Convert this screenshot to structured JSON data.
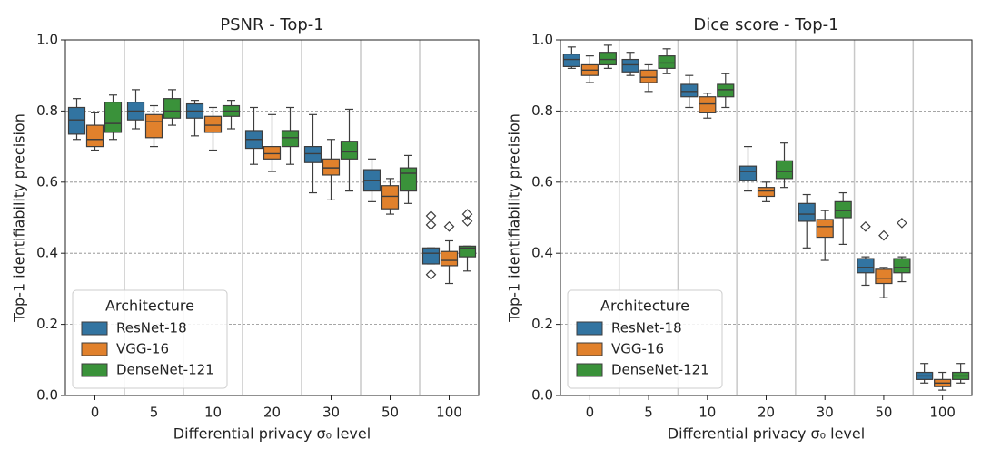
{
  "chart_data": [
    {
      "type": "box",
      "title": "PSNR - Top-1",
      "xlabel": "Differential privacy σ₀ level",
      "ylabel": "Top-1 identifiability precision",
      "categories": [
        "0",
        "5",
        "10",
        "20",
        "30",
        "50",
        "100"
      ],
      "ylim": [
        0,
        1
      ],
      "yticks": [
        {
          "value": 0,
          "label": "0.0"
        },
        {
          "value": 0.2,
          "label": "0.2"
        },
        {
          "value": 0.4,
          "label": "0.4"
        },
        {
          "value": 0.6,
          "label": "0.6"
        },
        {
          "value": 0.8,
          "label": "0.8"
        },
        {
          "value": 1,
          "label": "1.0"
        }
      ],
      "grid": true,
      "legend": {
        "title": "Architecture",
        "loc": "lower left"
      },
      "series": [
        {
          "name": "ResNet-18",
          "color": "#3274a1",
          "whislo": [
            0.72,
            0.75,
            0.73,
            0.65,
            0.57,
            0.545,
            0.37
          ],
          "q1": [
            0.735,
            0.775,
            0.78,
            0.695,
            0.655,
            0.575,
            0.37
          ],
          "median": [
            0.775,
            0.8,
            0.8,
            0.72,
            0.68,
            0.605,
            0.4
          ],
          "q3": [
            0.81,
            0.825,
            0.82,
            0.745,
            0.7,
            0.635,
            0.415
          ],
          "whishi": [
            0.835,
            0.86,
            0.83,
            0.81,
            0.79,
            0.665,
            0.415
          ],
          "fliers": [
            [],
            [],
            [],
            [],
            [],
            [],
            [
              0.34,
              0.48,
              0.505
            ]
          ]
        },
        {
          "name": "VGG-16",
          "color": "#e1812c",
          "whislo": [
            0.69,
            0.7,
            0.69,
            0.63,
            0.55,
            0.51,
            0.315
          ],
          "q1": [
            0.7,
            0.725,
            0.74,
            0.665,
            0.62,
            0.525,
            0.365
          ],
          "median": [
            0.72,
            0.77,
            0.76,
            0.68,
            0.64,
            0.56,
            0.38
          ],
          "q3": [
            0.76,
            0.79,
            0.785,
            0.7,
            0.665,
            0.59,
            0.405
          ],
          "whishi": [
            0.795,
            0.815,
            0.81,
            0.79,
            0.72,
            0.61,
            0.435
          ],
          "fliers": [
            [],
            [],
            [],
            [],
            [],
            [],
            [
              0.475
            ]
          ]
        },
        {
          "name": "DenseNet-121",
          "color": "#3a923a",
          "whislo": [
            0.72,
            0.76,
            0.75,
            0.65,
            0.575,
            0.54,
            0.35
          ],
          "q1": [
            0.74,
            0.78,
            0.785,
            0.7,
            0.665,
            0.575,
            0.39
          ],
          "median": [
            0.765,
            0.8,
            0.8,
            0.725,
            0.685,
            0.625,
            0.415
          ],
          "q3": [
            0.825,
            0.835,
            0.815,
            0.745,
            0.715,
            0.64,
            0.42
          ],
          "whishi": [
            0.845,
            0.86,
            0.83,
            0.81,
            0.805,
            0.675,
            0.42
          ],
          "fliers": [
            [],
            [],
            [],
            [],
            [],
            [],
            [
              0.49,
              0.51
            ]
          ]
        }
      ]
    },
    {
      "type": "box",
      "title": "Dice score - Top-1",
      "xlabel": "Differential privacy σ₀ level",
      "ylabel": "Top-1 identifiability precision",
      "categories": [
        "0",
        "5",
        "10",
        "20",
        "30",
        "50",
        "100"
      ],
      "ylim": [
        0,
        1
      ],
      "yticks": [
        {
          "value": 0,
          "label": "0.0"
        },
        {
          "value": 0.2,
          "label": "0.2"
        },
        {
          "value": 0.4,
          "label": "0.4"
        },
        {
          "value": 0.6,
          "label": "0.6"
        },
        {
          "value": 0.8,
          "label": "0.8"
        },
        {
          "value": 1,
          "label": "1.0"
        }
      ],
      "grid": true,
      "legend": {
        "title": "Architecture",
        "loc": "lower left"
      },
      "series": [
        {
          "name": "ResNet-18",
          "color": "#3274a1",
          "whislo": [
            0.92,
            0.9,
            0.81,
            0.575,
            0.415,
            0.31,
            0.035
          ],
          "q1": [
            0.925,
            0.91,
            0.84,
            0.605,
            0.49,
            0.345,
            0.045
          ],
          "median": [
            0.945,
            0.93,
            0.855,
            0.63,
            0.51,
            0.36,
            0.055
          ],
          "q3": [
            0.96,
            0.945,
            0.875,
            0.645,
            0.54,
            0.385,
            0.065
          ],
          "whishi": [
            0.98,
            0.965,
            0.9,
            0.7,
            0.565,
            0.39,
            0.09
          ],
          "fliers": [
            [],
            [],
            [],
            [],
            [],
            [
              0.475
            ],
            []
          ]
        },
        {
          "name": "VGG-16",
          "color": "#e1812c",
          "whislo": [
            0.88,
            0.855,
            0.78,
            0.545,
            0.38,
            0.275,
            0.015
          ],
          "q1": [
            0.9,
            0.88,
            0.795,
            0.56,
            0.445,
            0.315,
            0.025
          ],
          "median": [
            0.915,
            0.895,
            0.82,
            0.575,
            0.475,
            0.33,
            0.035
          ],
          "q3": [
            0.93,
            0.915,
            0.84,
            0.585,
            0.495,
            0.355,
            0.045
          ],
          "whishi": [
            0.955,
            0.93,
            0.85,
            0.6,
            0.52,
            0.36,
            0.065
          ],
          "fliers": [
            [],
            [],
            [],
            [],
            [],
            [
              0.45
            ],
            []
          ]
        },
        {
          "name": "DenseNet-121",
          "color": "#3a923a",
          "whislo": [
            0.92,
            0.905,
            0.81,
            0.585,
            0.425,
            0.32,
            0.035
          ],
          "q1": [
            0.93,
            0.92,
            0.84,
            0.61,
            0.5,
            0.345,
            0.045
          ],
          "median": [
            0.945,
            0.935,
            0.86,
            0.63,
            0.52,
            0.36,
            0.055
          ],
          "q3": [
            0.965,
            0.955,
            0.875,
            0.66,
            0.545,
            0.385,
            0.065
          ],
          "whishi": [
            0.985,
            0.975,
            0.905,
            0.71,
            0.57,
            0.39,
            0.09
          ],
          "fliers": [
            [],
            [],
            [],
            [],
            [],
            [
              0.485
            ],
            []
          ]
        }
      ]
    }
  ]
}
